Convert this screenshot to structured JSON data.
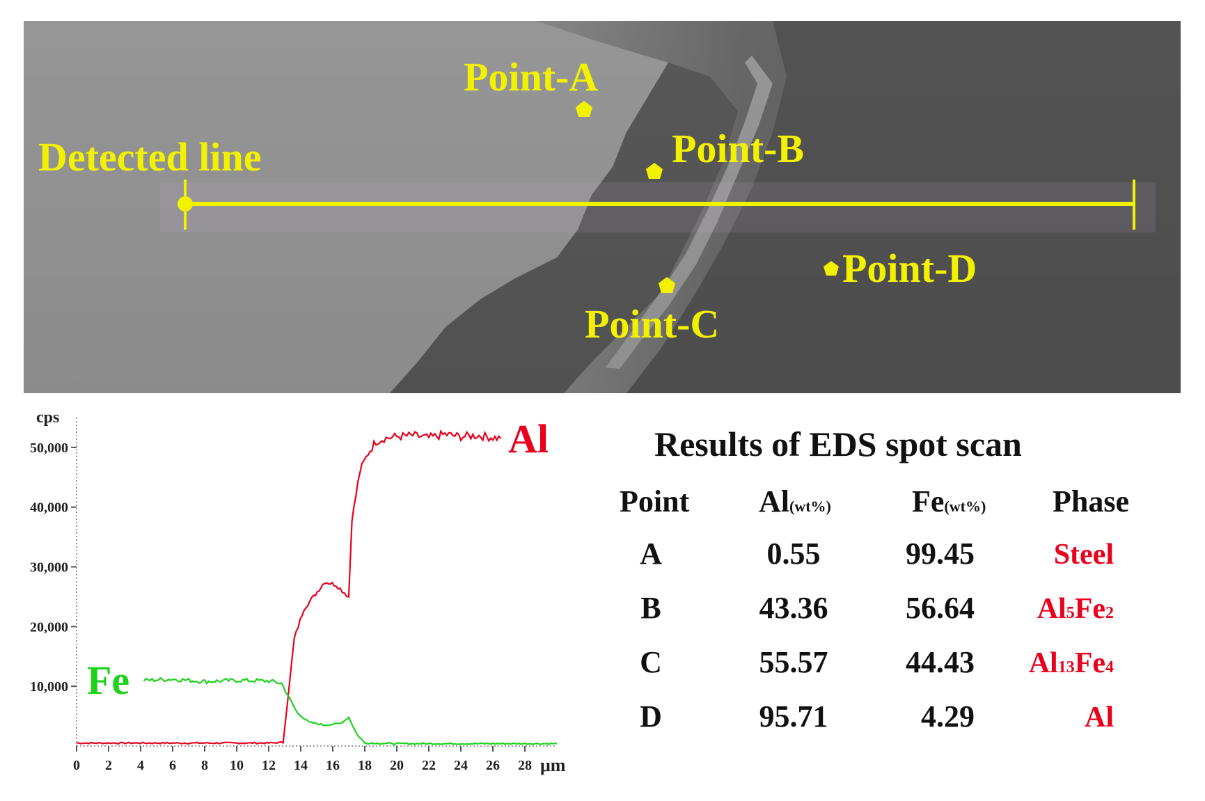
{
  "sem_image": {
    "labels": {
      "detected_line": "Detected line",
      "point_a": "Point-A",
      "point_b": "Point-B",
      "point_c": "Point-C",
      "point_d": "Point-D"
    },
    "colors": {
      "label": "#f2f200",
      "line": "#f2f200"
    }
  },
  "chart_data": {
    "type": "line",
    "ylabel": "cps",
    "xlabel": "μm",
    "xlim": [
      0,
      30
    ],
    "ylim": [
      0,
      55000
    ],
    "x_ticks": [
      "0",
      "2",
      "4",
      "6",
      "8",
      "10",
      "12",
      "14",
      "16",
      "18",
      "20",
      "22",
      "24",
      "26",
      "28"
    ],
    "y_ticks": [
      "10,000",
      "20,000",
      "30,000",
      "40,000",
      "50,000"
    ],
    "series": [
      {
        "name": "Al",
        "color": "#e8001c",
        "x": [
          0,
          12,
          12.9,
          13.2,
          13.6,
          14.2,
          14.8,
          15.5,
          16.2,
          17.0,
          17.2,
          17.7,
          18.2,
          18.7,
          19.2,
          20,
          21,
          22,
          23,
          24,
          25,
          26.5
        ],
        "y": [
          500,
          500,
          600,
          8000,
          18000,
          23000,
          25000,
          27500,
          27000,
          25000,
          38000,
          46000,
          49000,
          51000,
          51500,
          51800,
          52000,
          51600,
          52200,
          51800,
          52000,
          51500
        ]
      },
      {
        "name": "Fe",
        "color": "#1dd21d",
        "x": [
          4.2,
          6,
          8,
          10,
          12,
          12.8,
          13.3,
          13.8,
          14.5,
          15.5,
          16.5,
          17.0,
          17.5,
          18,
          20,
          24,
          28,
          30
        ],
        "y": [
          11000,
          11200,
          10800,
          11000,
          10900,
          10500,
          8000,
          5500,
          4000,
          3500,
          3800,
          4800,
          2000,
          500,
          400,
          400,
          400,
          400
        ]
      }
    ]
  },
  "results_table": {
    "title": "Results of EDS spot scan",
    "headers": {
      "point": "Point",
      "al": "Al",
      "al_sub": "(wt%)",
      "fe": "Fe",
      "fe_sub": "(wt%)",
      "phase": "Phase"
    },
    "rows": [
      {
        "point": "A",
        "al": "0.55",
        "fe": "99.45",
        "phase_parts": [
          [
            "Steel",
            ""
          ]
        ]
      },
      {
        "point": "B",
        "al": "43.36",
        "fe": "56.64",
        "phase_parts": [
          [
            "Al",
            "5"
          ],
          [
            "Fe",
            "2"
          ]
        ]
      },
      {
        "point": "C",
        "al": "55.57",
        "fe": "44.43",
        "phase_parts": [
          [
            "Al",
            "13"
          ],
          [
            "Fe",
            "4"
          ]
        ]
      },
      {
        "point": "D",
        "al": "95.71",
        "fe": "4.29",
        "phase_parts": [
          [
            "Al",
            ""
          ]
        ]
      }
    ],
    "phase_color": "#e8001c"
  }
}
